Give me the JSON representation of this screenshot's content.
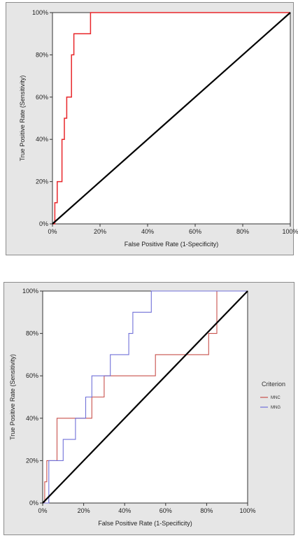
{
  "chart_data": [
    {
      "type": "line",
      "xlabel": "False Positive Rate (1-Specificity)",
      "ylabel": "True Positive Rate (Sensitivity)",
      "xlim": [
        0,
        100
      ],
      "ylim": [
        0,
        100
      ],
      "x_ticks": [
        "0%",
        "20%",
        "40%",
        "60%",
        "80%",
        "100%"
      ],
      "y_ticks": [
        "0%",
        "20%",
        "40%",
        "60%",
        "80%",
        "100%"
      ],
      "grid": false,
      "legend": "none",
      "colors": {
        "roc": "#e8262a",
        "diagonal": "#000000",
        "plot_bg": "#ffffff",
        "panel_bg": "#e6e6e6"
      },
      "series": [
        {
          "x": [
            0,
            1,
            1,
            2,
            2,
            4,
            4,
            5,
            5,
            6,
            6,
            8,
            8,
            9,
            9,
            16,
            16,
            100
          ],
          "y": [
            0,
            0,
            10,
            10,
            20,
            20,
            40,
            40,
            50,
            50,
            60,
            60,
            80,
            80,
            90,
            90,
            100,
            100
          ]
        },
        {
          "x": [
            0,
            100
          ],
          "y": [
            0,
            100
          ]
        }
      ]
    },
    {
      "type": "line",
      "xlabel": "False Positive Rate (1-Specificity)",
      "ylabel": "True Positive Rate (Sensitivity)",
      "xlim": [
        0,
        100
      ],
      "ylim": [
        0,
        100
      ],
      "x_ticks": [
        "0%",
        "20%",
        "40%",
        "60%",
        "80%",
        "100%"
      ],
      "y_ticks": [
        "0%",
        "20%",
        "40%",
        "60%",
        "80%",
        "100%"
      ],
      "grid": false,
      "legend": "right",
      "legend_title": "Criterion",
      "colors": {
        "diagonal": "#000000",
        "plot_bg": "#ffffff",
        "panel_bg": "#e6e6e6"
      },
      "series": [
        {
          "name": "MNC",
          "color": "#c8504b",
          "x": [
            0,
            1,
            1,
            2,
            2,
            7,
            7,
            15,
            15,
            24,
            24,
            27,
            27,
            30,
            30,
            55,
            55,
            81,
            81,
            85,
            85,
            100
          ],
          "y": [
            0,
            0,
            10,
            10,
            20,
            20,
            40,
            40,
            40,
            40,
            50,
            50,
            50,
            50,
            60,
            60,
            70,
            70,
            80,
            80,
            100,
            100
          ]
        },
        {
          "name": "MNG",
          "color": "#7070d8",
          "x": [
            0,
            3,
            3,
            10,
            10,
            16,
            16,
            21,
            21,
            24,
            24,
            28,
            28,
            33,
            33,
            42,
            42,
            44,
            44,
            53,
            53,
            100
          ],
          "y": [
            0,
            0,
            20,
            20,
            30,
            30,
            40,
            40,
            50,
            50,
            60,
            60,
            60,
            60,
            70,
            70,
            80,
            80,
            90,
            90,
            100,
            100
          ]
        },
        {
          "x": [
            0,
            100
          ],
          "y": [
            0,
            100
          ]
        }
      ]
    }
  ]
}
